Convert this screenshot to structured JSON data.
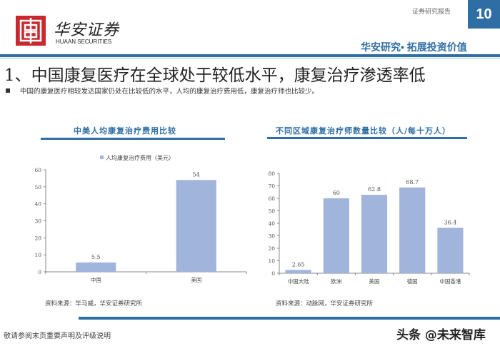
{
  "header": {
    "logo_cn": "华安证券",
    "logo_en": "HUAAN SECURITIES",
    "report_type": "证券研究报告",
    "page_number": "10",
    "slogan": "华安研究• 拓展投资价值"
  },
  "title": "1、中国康复医疗在全球处于较低水平，康复治疗渗透率低",
  "description": "中国的康复医疗相较发达国家仍处在比较低的水平，人均的康复治疗费用低，康复治疗师也比较少。",
  "chart_data": [
    {
      "type": "bar",
      "title": "中美人均康复治疗费用比较",
      "legend": "人均康复治疗费用（美元）",
      "legend_position": "top",
      "categories": [
        "中国",
        "美国"
      ],
      "values": [
        5.5,
        54
      ],
      "value_labels": [
        "5.5",
        "54"
      ],
      "yticks": [
        "0",
        "10",
        "20",
        "30",
        "40",
        "50",
        "60"
      ],
      "ylim": [
        0,
        60
      ],
      "color": "#a0b4dc",
      "source": "资料来源：毕马威，华安证券研究所"
    },
    {
      "type": "bar",
      "title": "不同区域康复治疗师数量比较（人/每十万人）",
      "categories": [
        "中国大陆",
        "欧洲",
        "美国",
        "德国",
        "中国香港"
      ],
      "values": [
        2.65,
        60,
        62.8,
        68.7,
        36.4
      ],
      "value_labels": [
        "2.65",
        "60",
        "62.8",
        "68.7",
        "36.4"
      ],
      "yticks": [
        "0",
        "10",
        "20",
        "30",
        "40",
        "50",
        "60",
        "70",
        "80"
      ],
      "ylim": [
        0,
        80
      ],
      "color": "#a0b4dc",
      "source": "资料来源：动脉网，华安证券研究所"
    }
  ],
  "footer": {
    "disclaimer": "敬请参阅末页重要声明及评级说明",
    "watermark": "头条 @未来智库"
  }
}
